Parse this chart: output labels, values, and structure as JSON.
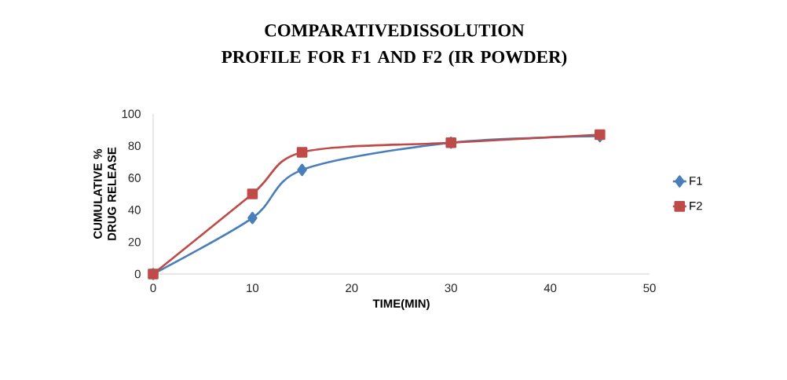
{
  "chart_data": {
    "type": "line",
    "title": "COMPARATIVEDISSOLUTION PROFILE FOR F1 AND F2 (IR POWDER)",
    "xlabel": "TIME(MIN)",
    "ylabel": "CUMULATIVE % DRUG RELEASE",
    "x": [
      0,
      10,
      15,
      30,
      45
    ],
    "series": [
      {
        "name": "F1",
        "color": "#4a7ebb",
        "marker": "diamond",
        "values": [
          0,
          35,
          65,
          82,
          86
        ]
      },
      {
        "name": "F2",
        "color": "#be4b48",
        "marker": "square",
        "values": [
          0,
          50,
          76,
          82,
          87
        ]
      }
    ],
    "xlim": [
      0,
      50
    ],
    "xticks": [
      0,
      10,
      20,
      30,
      40,
      50
    ],
    "ylim": [
      0,
      100
    ],
    "yticks": [
      0,
      20,
      40,
      60,
      80,
      100
    ],
    "grid": false,
    "legend": "right"
  }
}
